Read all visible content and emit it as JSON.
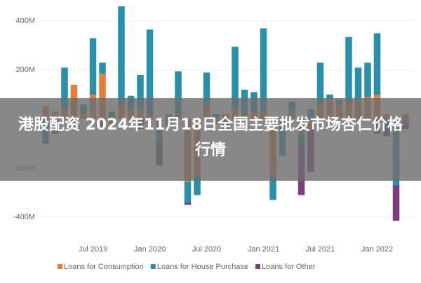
{
  "chart_data": {
    "type": "stacked-bar",
    "categories": [
      null,
      null,
      null,
      null,
      null,
      "Jul 2019",
      null,
      null,
      null,
      null,
      null,
      "Jan 2020",
      null,
      null,
      null,
      null,
      null,
      "Jul 2020",
      null,
      null,
      null,
      null,
      null,
      "Jan 2021",
      null,
      null,
      null,
      null,
      null,
      "Jul 2021",
      null,
      null,
      null,
      null,
      null,
      "Jan 2022",
      null,
      null,
      null
    ],
    "series": [
      {
        "name": "Loans for Consumption",
        "color": "#e27d3a",
        "values": [
          55,
          30,
          40,
          140,
          20,
          100,
          185,
          -20,
          60,
          40,
          40,
          20,
          -30,
          20,
          20,
          -255,
          -230,
          50,
          -20,
          20,
          40,
          20,
          30,
          30,
          -230,
          -20,
          20,
          -60,
          -40,
          60,
          80,
          60,
          70,
          80,
          90,
          100,
          20,
          -30,
          20
        ]
      },
      {
        "name": "Loans for House Purchase",
        "color": "#2a8fa9",
        "values": [
          -90,
          -60,
          170,
          -20,
          40,
          230,
          45,
          30,
          400,
          55,
          140,
          345,
          -60,
          -30,
          175,
          -85,
          -80,
          140,
          20,
          -40,
          255,
          100,
          80,
          340,
          -100,
          -130,
          50,
          -40,
          40,
          170,
          20,
          20,
          265,
          130,
          140,
          250,
          -30,
          -240,
          -20
        ]
      },
      {
        "name": "Loans for Other",
        "color": "#7b3f7c",
        "values": [
          -10,
          0,
          0,
          0,
          0,
          0,
          -40,
          0,
          0,
          0,
          -40,
          0,
          -100,
          0,
          0,
          -10,
          0,
          0,
          0,
          0,
          0,
          0,
          0,
          0,
          0,
          0,
          0,
          -210,
          -175,
          0,
          0,
          0,
          0,
          0,
          0,
          -60,
          -40,
          -145,
          -20
        ]
      }
    ],
    "ylim": [
      -480,
      480
    ],
    "yticks": [
      {
        "value": -400,
        "label": "-400M"
      },
      {
        "value": -200,
        "label": "-200M"
      },
      {
        "value": 200,
        "label": "200M"
      },
      {
        "value": 400,
        "label": "400M"
      }
    ],
    "grid": true,
    "banner": "港股配资 2024年11月18日全国主要批发市场杏仁价格行情"
  }
}
